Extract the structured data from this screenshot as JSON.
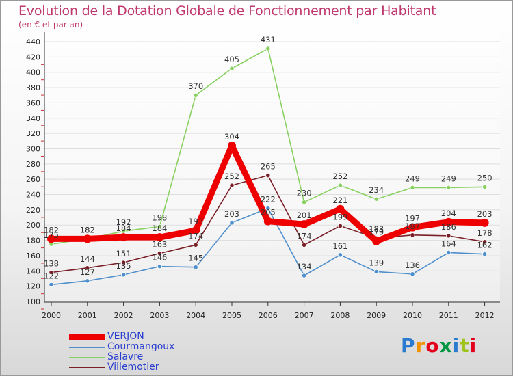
{
  "chart_data": {
    "type": "line",
    "title": "Evolution de la Dotation Globale de Fonctionnement par Habitant",
    "subtitle": "(en € et par an)",
    "xlabel": "",
    "ylabel": "",
    "categories": [
      "2000",
      "2001",
      "2002",
      "2003",
      "2004",
      "2005",
      "2006",
      "2007",
      "2008",
      "2009",
      "2010",
      "2011",
      "2012"
    ],
    "ylim": [
      100,
      440
    ],
    "yticks": [
      100,
      120,
      140,
      160,
      180,
      200,
      220,
      240,
      260,
      280,
      300,
      320,
      340,
      360,
      380,
      400,
      420,
      440
    ],
    "legend_position": "bottom-left",
    "series": [
      {
        "name": "Villemotier",
        "color": "#7a1f28",
        "values": [
          138,
          144,
          151,
          163,
          174,
          252,
          265,
          174,
          199,
          183,
          187,
          186,
          178
        ]
      },
      {
        "name": "Courmangoux",
        "color": "#4f8fcc",
        "values": [
          122,
          127,
          135,
          146,
          145,
          203,
          222,
          134,
          161,
          139,
          136,
          164,
          162
        ]
      },
      {
        "name": "Salavre",
        "color": "#88d060",
        "values": [
          175,
          182,
          192,
          198,
          370,
          405,
          431,
          230,
          252,
          234,
          249,
          249,
          250
        ]
      },
      {
        "name": "VERJON",
        "color": "#ee0000",
        "values": [
          182,
          182,
          184,
          184,
          193,
          304,
          205,
          201,
          221,
          179,
          197,
          204,
          203
        ]
      }
    ],
    "data_labels": {
      "VERJON": [
        "182",
        "182",
        "184",
        "184",
        "193",
        "304",
        "205",
        "201",
        "221",
        "179",
        "197",
        "204",
        "203"
      ],
      "Courmangoux": [
        "122",
        "127",
        "135",
        "146",
        "145",
        "203",
        "222",
        "134",
        "161",
        "139",
        "136",
        "164",
        "162"
      ],
      "Salavre": [
        "175",
        "182",
        "192",
        "198",
        "370",
        "405",
        "431",
        "230",
        "252",
        "234",
        "249",
        "249",
        "250"
      ],
      "Villemotier": [
        "138",
        "144",
        "151",
        "163",
        "174",
        "252",
        "265",
        "174",
        "199",
        "183",
        "187",
        "186",
        "178"
      ]
    }
  },
  "legend": {
    "items": [
      {
        "label": "VERJON",
        "color": "#ee0000"
      },
      {
        "label": "Courmangoux",
        "color": "#4f8fcc"
      },
      {
        "label": "Salavre",
        "color": "#88d060"
      },
      {
        "label": "Villemotier",
        "color": "#7a1f28"
      }
    ]
  },
  "logo": {
    "text": "Proxiti",
    "colors": [
      "#2a7bd0",
      "#f39200",
      "#e2001a",
      "#009640",
      "#2a7bd0",
      "#9ec31a",
      "#e2001a"
    ]
  }
}
